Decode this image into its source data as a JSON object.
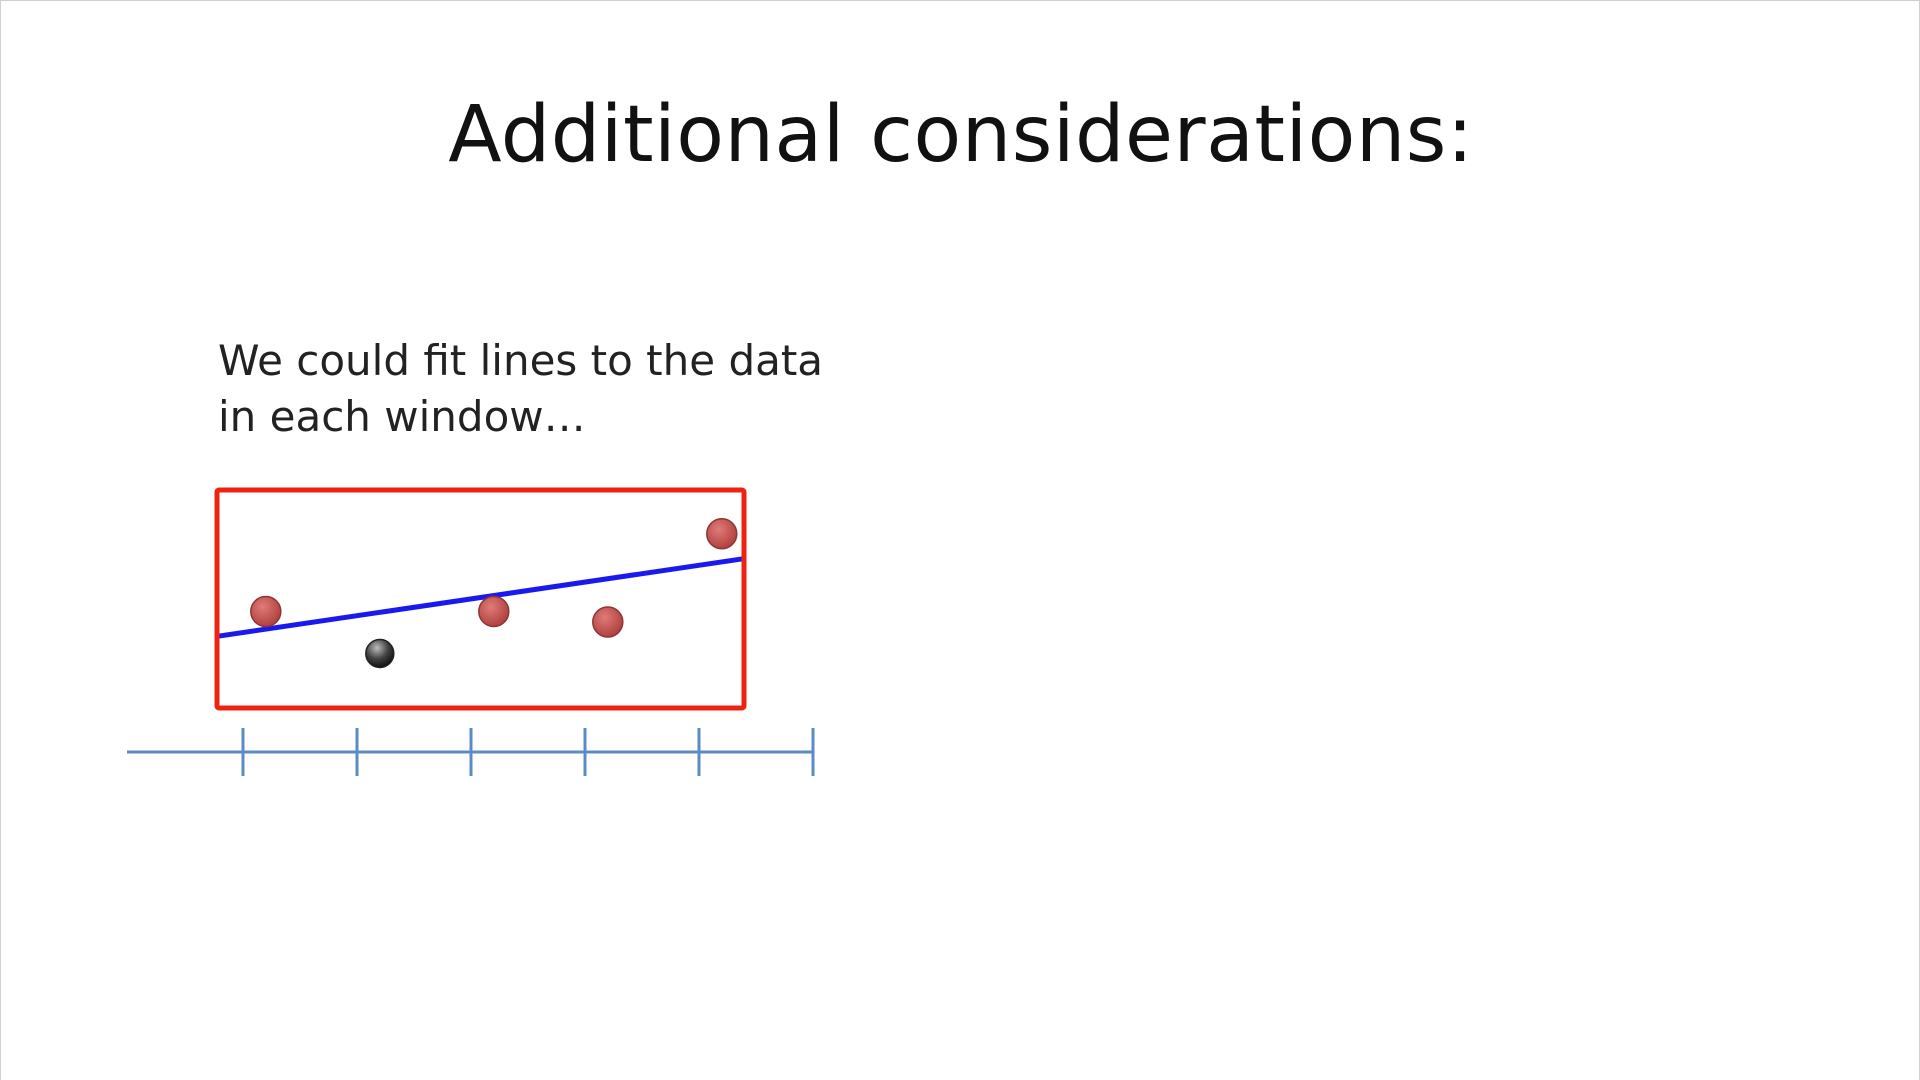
{
  "slide": {
    "title": "Additional considerations:",
    "body_lines": [
      "We could fit lines to the data",
      "in each window…"
    ]
  },
  "diagram": {
    "window_color": "#ee2211",
    "fit_line_color": "#1a1aee",
    "axis_color": "#5b8ac6",
    "point_color": "#c0504d",
    "highlight_point_color": "#333333",
    "axis_tick_count": 6,
    "points": [
      {
        "x": 0.2,
        "y": 0.45,
        "kind": "red"
      },
      {
        "x": 1.2,
        "y": 0.25,
        "kind": "dark"
      },
      {
        "x": 2.2,
        "y": 0.45,
        "kind": "red"
      },
      {
        "x": 3.2,
        "y": 0.4,
        "kind": "red"
      },
      {
        "x": 4.2,
        "y": 0.82,
        "kind": "red"
      }
    ],
    "fit_line": {
      "slope": 0.08,
      "intercept": 0.35
    }
  }
}
